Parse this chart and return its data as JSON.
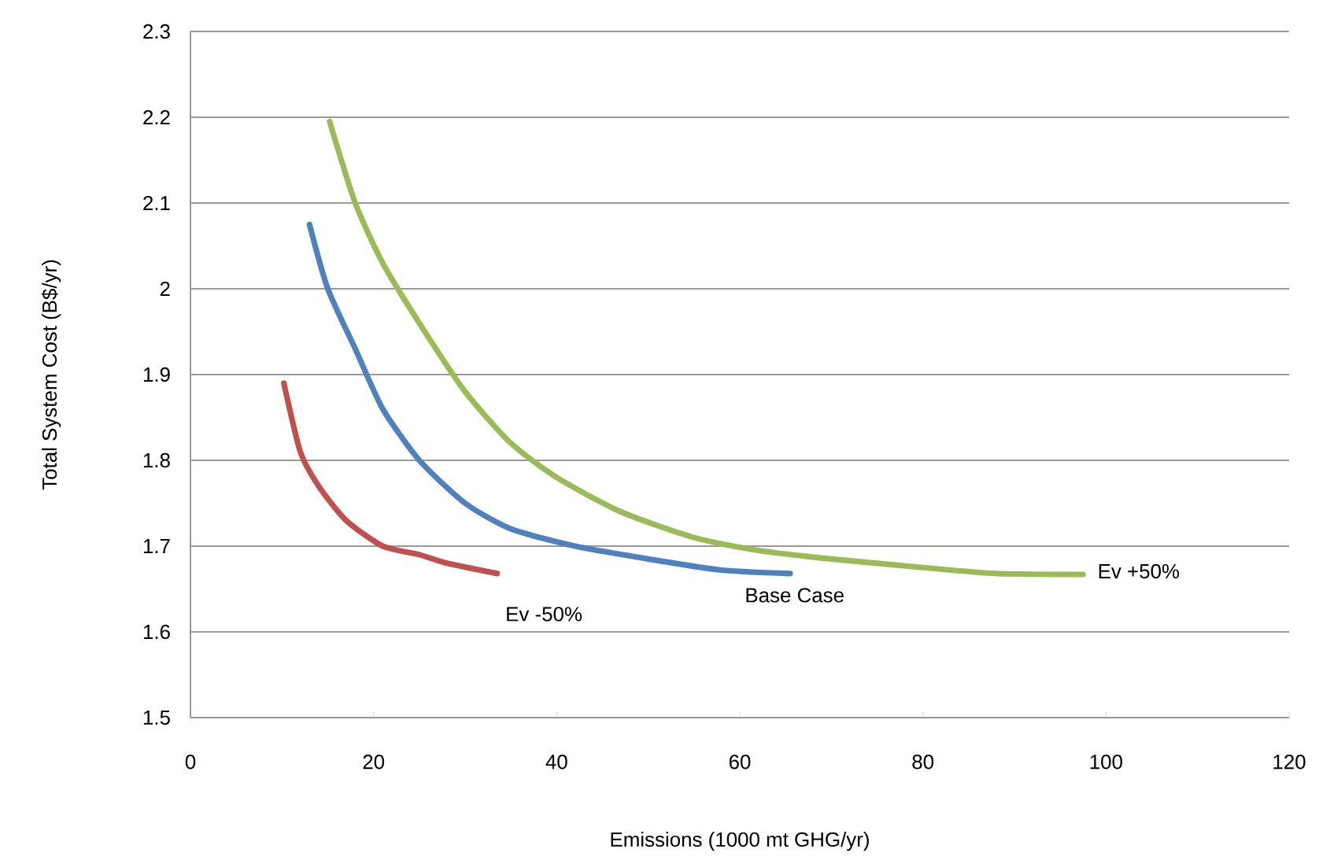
{
  "chart_data": {
    "type": "line",
    "xlabel": "Emissions (1000 mt GHG/yr)",
    "ylabel": "Total System Cost (B$/yr)",
    "xlim": [
      0,
      120
    ],
    "xticks": [
      0,
      20,
      40,
      60,
      80,
      100,
      120
    ],
    "ylim": [
      1.5,
      2.3
    ],
    "yticks": [
      1.5,
      1.6,
      1.7,
      1.8,
      1.9,
      2,
      2.1,
      2.2,
      2.3
    ],
    "grid": "y",
    "legend": false,
    "marker": "none",
    "line_style": "solid",
    "series": [
      {
        "name": "Ev -50%",
        "color": "#c0504d",
        "x": [
          10.2,
          12,
          14,
          17,
          21,
          25,
          28,
          33.5
        ],
        "values": [
          1.89,
          1.81,
          1.77,
          1.73,
          1.7,
          1.69,
          1.68,
          1.668
        ]
      },
      {
        "name": "Base Case",
        "color": "#4f81bd",
        "x": [
          13,
          15,
          18,
          21,
          25,
          30,
          35,
          42,
          50,
          58,
          65.5
        ],
        "values": [
          2.075,
          2.0,
          1.93,
          1.86,
          1.8,
          1.75,
          1.72,
          1.7,
          1.685,
          1.672,
          1.668
        ]
      },
      {
        "name": "Ev +50%",
        "color": "#9bbb59",
        "x": [
          15.2,
          18,
          21,
          25,
          30,
          35,
          40,
          47,
          55,
          62,
          70,
          80,
          88,
          97.5
        ],
        "values": [
          2.195,
          2.1,
          2.03,
          1.96,
          1.88,
          1.82,
          1.78,
          1.74,
          1.71,
          1.695,
          1.685,
          1.675,
          1.668,
          1.667
        ]
      }
    ]
  }
}
